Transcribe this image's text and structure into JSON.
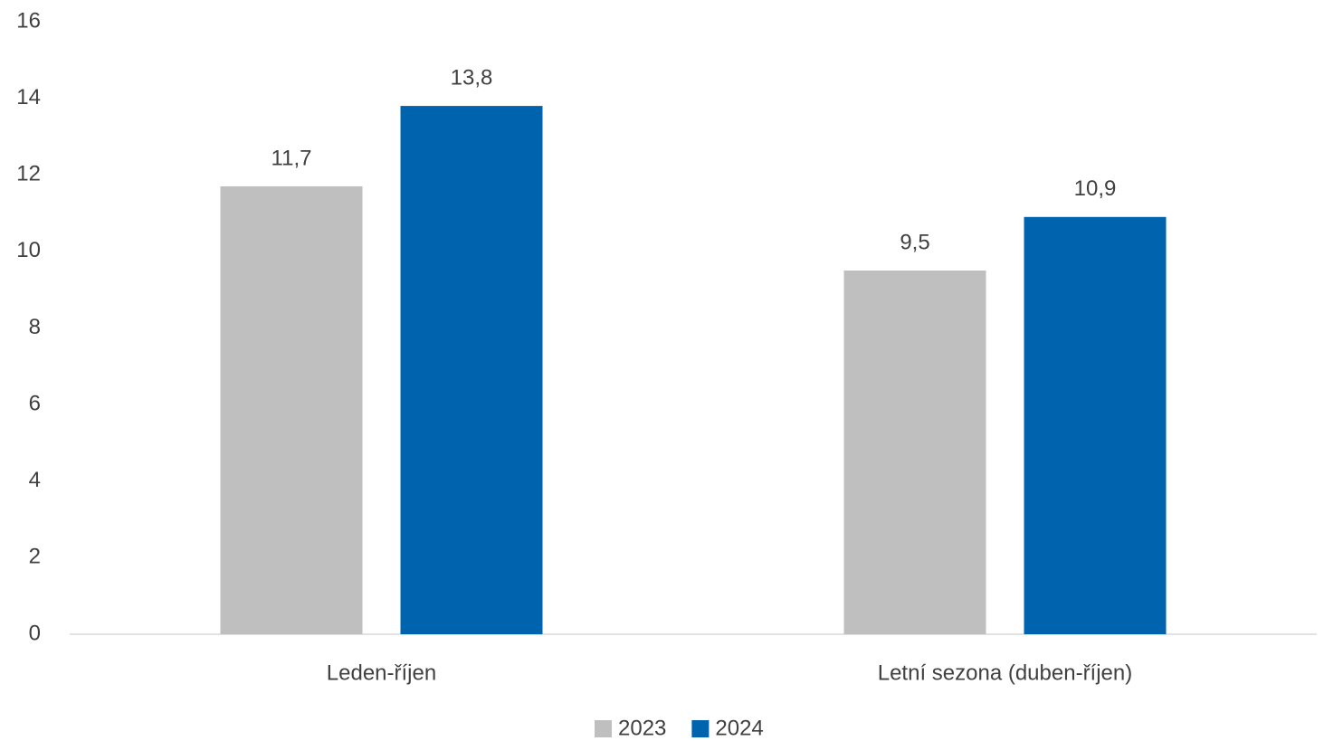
{
  "chart_data": {
    "type": "bar",
    "categories": [
      "Leden-říjen",
      "Letní sezona (duben-říjen)"
    ],
    "series": [
      {
        "name": "2023",
        "color": "#bfbfbf",
        "values": [
          11.7,
          9.5
        ],
        "value_labels": [
          "11,7",
          "9,5"
        ]
      },
      {
        "name": "2024",
        "color": "#0063ae",
        "values": [
          13.8,
          10.9
        ],
        "value_labels": [
          "13,8",
          "10,9"
        ]
      }
    ],
    "ylim": [
      0,
      16
    ],
    "yticks": [
      0,
      2,
      4,
      6,
      8,
      10,
      12,
      14,
      16
    ],
    "grid": false,
    "legend": "bottom"
  }
}
